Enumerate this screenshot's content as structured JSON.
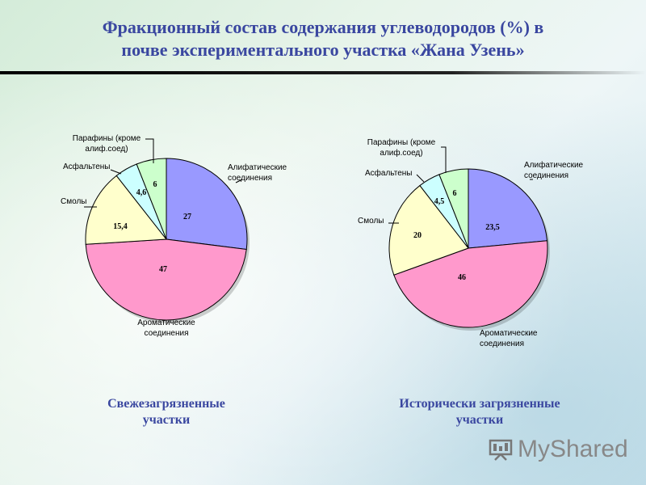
{
  "slide": {
    "title_line1": "Фракционный состав содержания углеводородов (%) в",
    "title_line2": "почве экспериментального участка «Жана Узень»",
    "brand": "MyShared"
  },
  "chart_data": [
    {
      "type": "pie",
      "caption_line1": "Свежезагрязненные",
      "caption_line2": "участки",
      "slices": [
        {
          "label_lines": [
            "Алифатические",
            "соединения"
          ],
          "value": 27,
          "value_label": "27",
          "color": "#9999ff"
        },
        {
          "label_lines": [
            "Ароматические",
            "соединения"
          ],
          "value": 47,
          "value_label": "47",
          "color": "#ff99cc"
        },
        {
          "label_lines": [
            "Смолы"
          ],
          "value": 15.4,
          "value_label": "15,4",
          "color": "#ffffcc"
        },
        {
          "label_lines": [
            "Асфальтены"
          ],
          "value": 4.6,
          "value_label": "4,6",
          "color": "#ccffff"
        },
        {
          "label_lines": [
            "Парафины (кроме",
            "алиф.соед)"
          ],
          "value": 6,
          "value_label": "6",
          "color": "#ccffcc"
        }
      ]
    },
    {
      "type": "pie",
      "caption_line1": "Исторически загрязненные",
      "caption_line2": "участки",
      "slices": [
        {
          "label_lines": [
            "Алифатические",
            "соединения"
          ],
          "value": 23.5,
          "value_label": "23,5",
          "color": "#9999ff"
        },
        {
          "label_lines": [
            "Ароматические",
            "соединения"
          ],
          "value": 46,
          "value_label": "46",
          "color": "#ff99cc"
        },
        {
          "label_lines": [
            "Смолы"
          ],
          "value": 20,
          "value_label": "20",
          "color": "#ffffcc"
        },
        {
          "label_lines": [
            "Асфальтены"
          ],
          "value": 4.5,
          "value_label": "4,5",
          "color": "#ccffff"
        },
        {
          "label_lines": [
            "Парафины (кроме",
            "алиф.соед)"
          ],
          "value": 6,
          "value_label": "6",
          "color": "#ccffcc"
        }
      ]
    }
  ]
}
